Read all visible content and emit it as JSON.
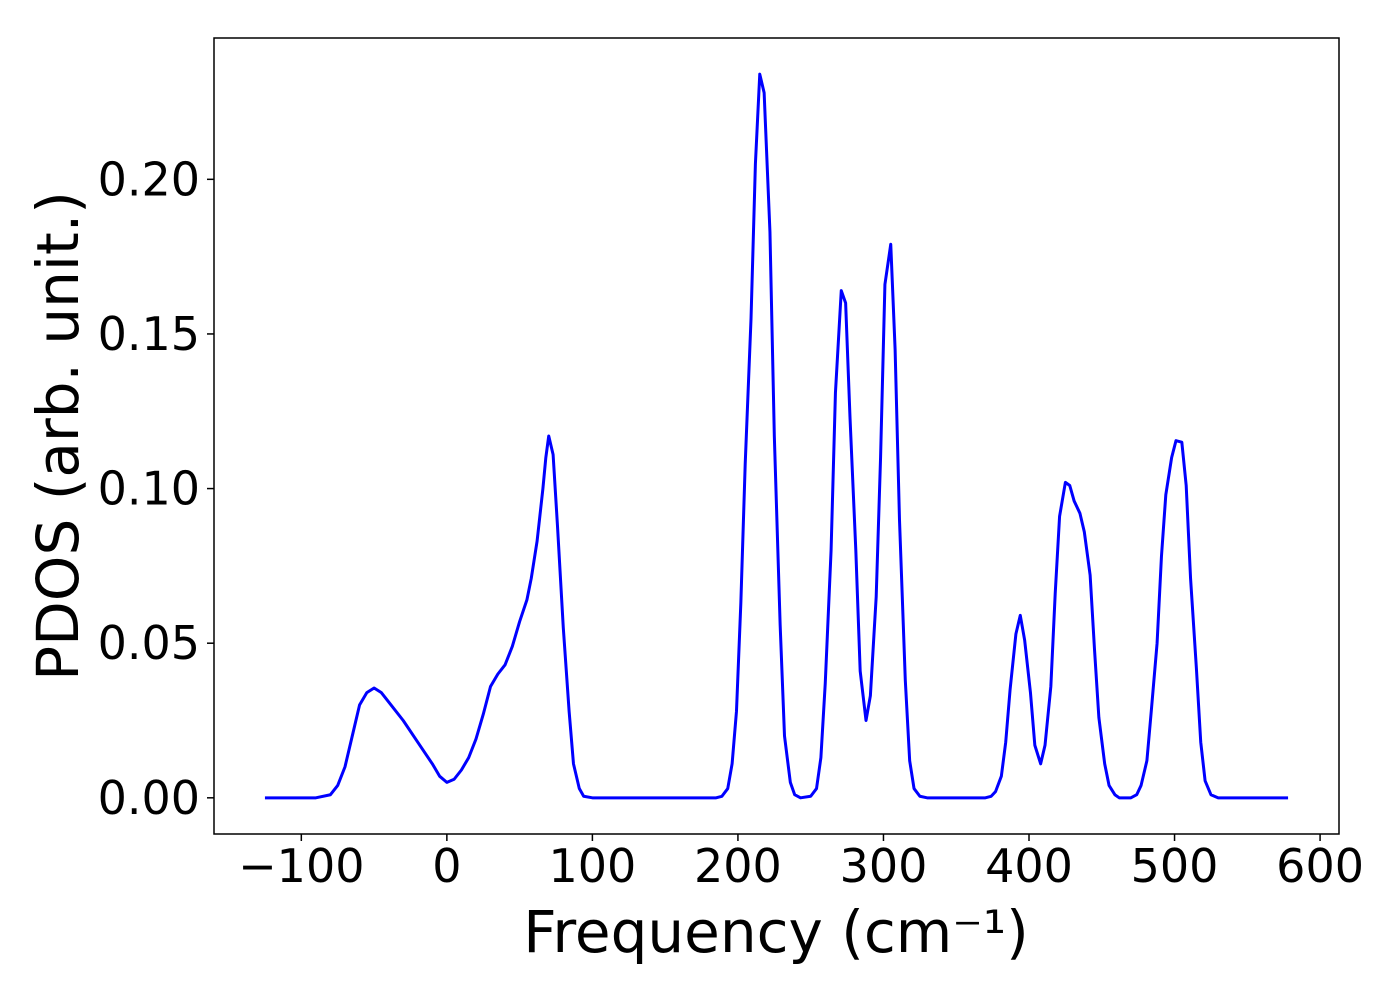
{
  "chart_data": {
    "type": "line",
    "x_label": "Frequency (cm⁻¹)",
    "y_label": "PDOS (arb. unit.)",
    "x": [
      -125,
      -90,
      -80,
      -75,
      -70,
      -65,
      -60,
      -55,
      -50,
      -45,
      -40,
      -30,
      -20,
      -10,
      -5,
      0,
      5,
      10,
      15,
      20,
      25,
      30,
      35,
      40,
      45,
      50,
      55,
      58,
      62,
      66,
      68,
      70,
      73,
      76,
      80,
      84,
      87,
      91,
      94,
      100,
      185,
      189,
      193,
      196,
      199,
      202,
      205,
      209,
      212,
      215,
      218,
      222,
      225,
      229,
      232,
      236,
      239,
      243,
      250,
      254,
      257,
      260,
      264,
      267,
      271,
      274,
      277,
      281,
      284,
      288,
      291,
      295,
      298,
      301,
      305,
      308,
      311,
      315,
      318,
      321,
      325,
      330,
      370,
      374,
      377,
      381,
      384,
      387,
      391,
      394,
      397,
      401,
      404,
      408,
      411,
      415,
      418,
      421,
      425,
      428,
      431,
      435,
      438,
      442,
      445,
      448,
      452,
      455,
      459,
      462,
      470,
      474,
      477,
      481,
      484,
      488,
      491,
      494,
      498,
      501,
      505,
      508,
      511,
      515,
      518,
      521,
      525,
      530,
      578
    ],
    "series": [
      {
        "color": "#0000ff",
        "values": [
          0,
          0,
          0.001,
          0.004,
          0.01,
          0.02,
          0.03,
          0.034,
          0.0355,
          0.034,
          0.031,
          0.025,
          0.018,
          0.011,
          0.007,
          0.005,
          0.006,
          0.009,
          0.013,
          0.019,
          0.027,
          0.036,
          0.04,
          0.043,
          0.049,
          0.057,
          0.064,
          0.071,
          0.083,
          0.1,
          0.11,
          0.117,
          0.111,
          0.088,
          0.055,
          0.028,
          0.011,
          0.003,
          0.0005,
          0,
          0,
          0.0005,
          0.003,
          0.011,
          0.028,
          0.063,
          0.108,
          0.155,
          0.205,
          0.234,
          0.228,
          0.183,
          0.117,
          0.056,
          0.02,
          0.005,
          0.001,
          0,
          0.0005,
          0.003,
          0.013,
          0.037,
          0.08,
          0.131,
          0.164,
          0.16,
          0.123,
          0.08,
          0.041,
          0.025,
          0.033,
          0.065,
          0.11,
          0.166,
          0.179,
          0.145,
          0.09,
          0.038,
          0.012,
          0.003,
          0.0005,
          0,
          0,
          0.0005,
          0.002,
          0.007,
          0.018,
          0.035,
          0.053,
          0.059,
          0.051,
          0.034,
          0.017,
          0.011,
          0.017,
          0.036,
          0.066,
          0.091,
          0.102,
          0.101,
          0.096,
          0.092,
          0.086,
          0.072,
          0.048,
          0.026,
          0.011,
          0.004,
          0.001,
          0,
          0,
          0.001,
          0.004,
          0.012,
          0.028,
          0.05,
          0.078,
          0.098,
          0.11,
          0.1155,
          0.115,
          0.101,
          0.071,
          0.042,
          0.018,
          0.0055,
          0.001,
          0,
          0
        ]
      }
    ],
    "xlim": [
      -160,
      613
    ],
    "ylim": [
      -0.0117,
      0.2457
    ],
    "xticks": [
      {
        "value": -100,
        "label": "−100"
      },
      0,
      100,
      200,
      300,
      400,
      500,
      600
    ],
    "yticks": [
      {
        "value": 0,
        "label": "0.00"
      },
      {
        "value": 0.05,
        "label": "0.05"
      },
      {
        "value": 0.1,
        "label": "0.10"
      },
      {
        "value": 0.15,
        "label": "0.15"
      },
      {
        "value": 0.2,
        "label": "0.20"
      }
    ],
    "grid": false
  }
}
